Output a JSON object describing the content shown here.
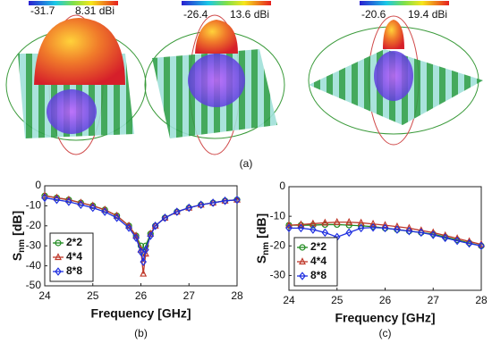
{
  "panel_a": {
    "colorbars": [
      {
        "min": "-31.7",
        "max": "8.31 dBi"
      },
      {
        "min": "-26.4",
        "max": "13.6 dBi"
      },
      {
        "min": "-20.6",
        "max": "19.4 dBi"
      }
    ],
    "caption": "(a)"
  },
  "chart_data": [
    {
      "type": "line",
      "caption": "(b)",
      "xlabel": "Frequency [GHz]",
      "ylabel": {
        "symbol": "S",
        "subscript": "nm",
        "unit": "[dB]"
      },
      "x": [
        24,
        24.25,
        24.5,
        24.75,
        25,
        25.25,
        25.5,
        25.75,
        25.9,
        26,
        26.05,
        26.1,
        26.2,
        26.3,
        26.5,
        26.75,
        27,
        27.25,
        27.5,
        27.75,
        28
      ],
      "xlim": [
        24,
        28
      ],
      "xticks": [
        24,
        25,
        26,
        27,
        28
      ],
      "ylim": [
        -50,
        0
      ],
      "yticks": [
        0,
        -10,
        -20,
        -30,
        -40,
        -50
      ],
      "legend": "lower left",
      "series": [
        {
          "name": "2*2",
          "color": "#1e8a1e",
          "marker": "circle",
          "values": [
            -5,
            -6,
            -7,
            -8.5,
            -10,
            -12,
            -15,
            -20,
            -25,
            -30,
            -33,
            -30,
            -24,
            -20,
            -16,
            -13,
            -11,
            -9.5,
            -8.5,
            -7.5,
            -7
          ]
        },
        {
          "name": "4*4",
          "color": "#c0392b",
          "marker": "triangle",
          "values": [
            -5,
            -6,
            -7,
            -8.5,
            -10,
            -12,
            -15,
            -20,
            -25,
            -32,
            -44,
            -34,
            -24,
            -20,
            -16,
            -13,
            -11,
            -9.5,
            -8.5,
            -7.5,
            -7
          ]
        },
        {
          "name": "8*8",
          "color": "#1f2fe0",
          "marker": "diamond",
          "values": [
            -6,
            -7,
            -8,
            -9.5,
            -11,
            -13,
            -16,
            -21,
            -26,
            -33,
            -38,
            -32,
            -25,
            -20,
            -16,
            -13,
            -11,
            -9.5,
            -8.5,
            -7.5,
            -7
          ]
        }
      ]
    },
    {
      "type": "line",
      "caption": "(c)",
      "xlabel": "Frequency [GHz]",
      "ylabel": {
        "symbol": "S",
        "subscript": "nm",
        "unit": "[dB]"
      },
      "x": [
        24,
        24.25,
        24.5,
        24.75,
        25,
        25.25,
        25.5,
        25.75,
        26,
        26.25,
        26.5,
        26.75,
        27,
        27.25,
        27.5,
        27.75,
        28
      ],
      "xlim": [
        24,
        28
      ],
      "xticks": [
        24,
        25,
        26,
        27,
        28
      ],
      "ylim": [
        -35,
        0
      ],
      "yticks": [
        0,
        -10,
        -20,
        -30
      ],
      "legend": "lower left",
      "series": [
        {
          "name": "2*2",
          "color": "#1e8a1e",
          "marker": "circle",
          "values": [
            -13,
            -13,
            -13,
            -12.8,
            -12.8,
            -13,
            -13.2,
            -13.5,
            -14,
            -14.5,
            -15,
            -15.5,
            -16,
            -17,
            -18,
            -19,
            -20
          ]
        },
        {
          "name": "4*4",
          "color": "#c0392b",
          "marker": "triangle",
          "values": [
            -13,
            -12.8,
            -12.5,
            -12.2,
            -12,
            -12,
            -12.2,
            -12.6,
            -13,
            -13.5,
            -14,
            -14.8,
            -15.5,
            -16.5,
            -17.5,
            -18.5,
            -19.5
          ]
        },
        {
          "name": "8*8",
          "color": "#1f2fe0",
          "marker": "diamond",
          "values": [
            -14,
            -14,
            -14.5,
            -15.5,
            -17,
            -15.5,
            -14,
            -13.8,
            -14,
            -14.5,
            -15,
            -15.5,
            -16.3,
            -17.3,
            -18.3,
            -19.2,
            -20
          ]
        }
      ]
    }
  ]
}
